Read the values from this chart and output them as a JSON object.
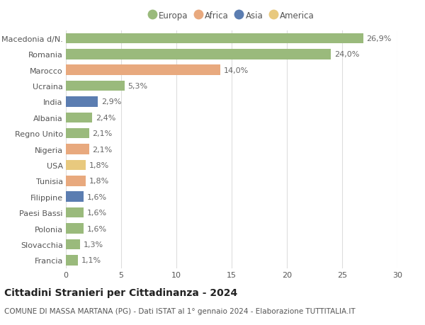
{
  "categories": [
    "Macedonia d/N.",
    "Romania",
    "Marocco",
    "Ucraina",
    "India",
    "Albania",
    "Regno Unito",
    "Nigeria",
    "USA",
    "Tunisia",
    "Filippine",
    "Paesi Bassi",
    "Polonia",
    "Slovacchia",
    "Francia"
  ],
  "values": [
    26.9,
    24.0,
    14.0,
    5.3,
    2.9,
    2.4,
    2.1,
    2.1,
    1.8,
    1.8,
    1.6,
    1.6,
    1.6,
    1.3,
    1.1
  ],
  "labels": [
    "26,9%",
    "24,0%",
    "14,0%",
    "5,3%",
    "2,9%",
    "2,4%",
    "2,1%",
    "2,1%",
    "1,8%",
    "1,8%",
    "1,6%",
    "1,6%",
    "1,6%",
    "1,3%",
    "1,1%"
  ],
  "continents": [
    "Europa",
    "Europa",
    "Africa",
    "Europa",
    "Asia",
    "Europa",
    "Europa",
    "Africa",
    "America",
    "Africa",
    "Asia",
    "Europa",
    "Europa",
    "Europa",
    "Europa"
  ],
  "colors": {
    "Europa": "#9aba7c",
    "Africa": "#e8a97e",
    "Asia": "#5b7db1",
    "America": "#e8c97e"
  },
  "legend_order": [
    "Europa",
    "Africa",
    "Asia",
    "America"
  ],
  "title": "Cittadini Stranieri per Cittadinanza - 2024",
  "subtitle": "COMUNE DI MASSA MARTANA (PG) - Dati ISTAT al 1° gennaio 2024 - Elaborazione TUTTITALIA.IT",
  "xlim": [
    0,
    30
  ],
  "xticks": [
    0,
    5,
    10,
    15,
    20,
    25,
    30
  ],
  "background_color": "#ffffff",
  "grid_color": "#dddddd",
  "bar_height": 0.65,
  "title_fontsize": 10,
  "subtitle_fontsize": 7.5,
  "tick_fontsize": 8,
  "label_fontsize": 8,
  "legend_fontsize": 8.5
}
